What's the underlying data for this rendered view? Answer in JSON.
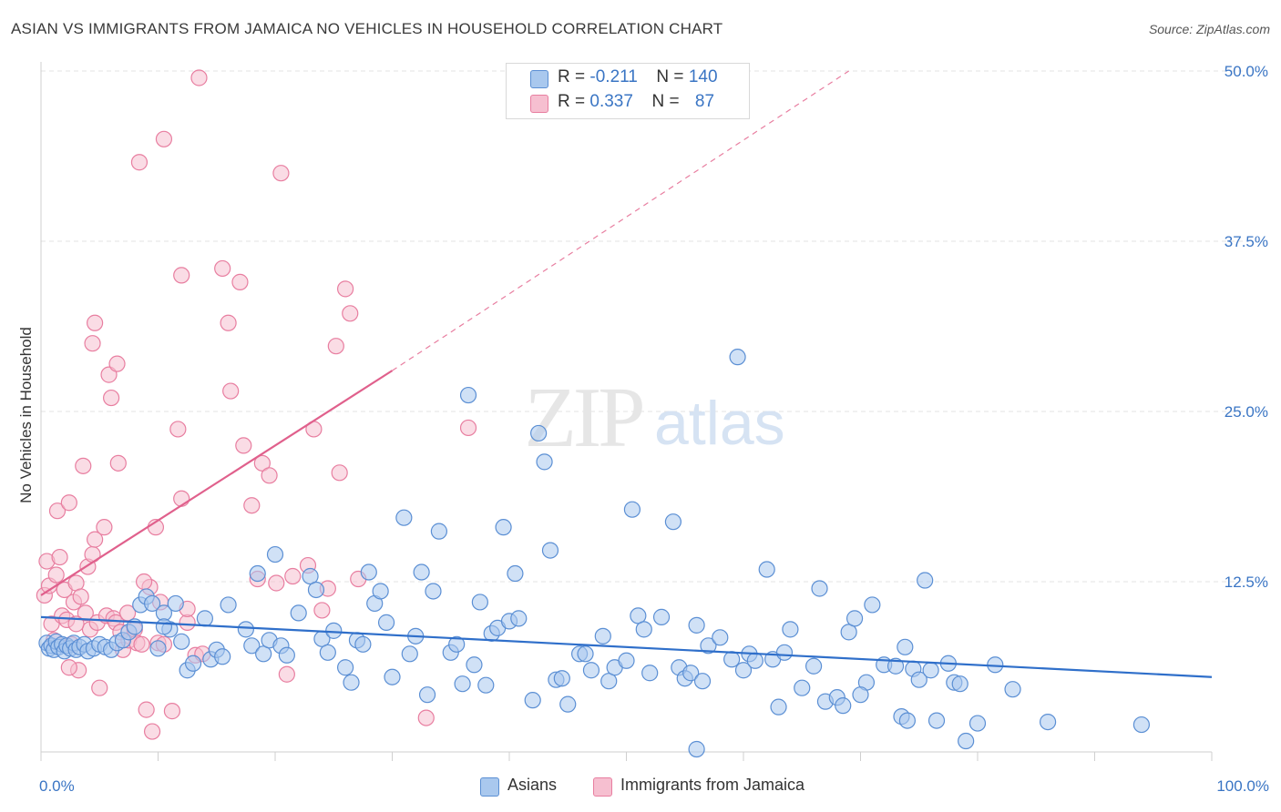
{
  "title": "ASIAN VS IMMIGRANTS FROM JAMAICA NO VEHICLES IN HOUSEHOLD CORRELATION CHART",
  "source": "Source: ZipAtlas.com",
  "watermark": {
    "zip": "ZIP",
    "atlas": "atlas"
  },
  "colors": {
    "asian_fill": "#a9c8ee",
    "asian_stroke": "#5b8fd4",
    "asian_line": "#2f6fca",
    "jamaica_fill": "#f6bfd0",
    "jamaica_stroke": "#e87ea0",
    "jamaica_line": "#e0608c",
    "axis_text": "#3a75c4",
    "grid": "#e3e3e3"
  },
  "legend": {
    "rows": [
      {
        "r_label": "R =",
        "r_value": "-0.211",
        "n_label": "N =",
        "n_value": "140"
      },
      {
        "r_label": "R =",
        "r_value": "0.337",
        "n_label": "N =",
        "n_value": "87"
      }
    ]
  },
  "bottom_legend": {
    "asian": "Asians",
    "jamaica": "Immigrants from Jamaica"
  },
  "chart_data": {
    "type": "scatter",
    "title": "ASIAN VS IMMIGRANTS FROM JAMAICA NO VEHICLES IN HOUSEHOLD CORRELATION CHART",
    "xlabel": "",
    "ylabel": "No Vehicles in Household",
    "xlim": [
      0,
      100
    ],
    "ylim": [
      0,
      50
    ],
    "x_tick_labels": [
      "0.0%",
      "100.0%"
    ],
    "y_ticks": [
      12.5,
      25.0,
      37.5,
      50.0
    ],
    "y_tick_labels": [
      "12.5%",
      "25.0%",
      "37.5%",
      "50.0%"
    ],
    "grid": true,
    "legend_position": "top-center",
    "series": [
      {
        "name": "Asians",
        "r": -0.211,
        "n": 140,
        "trend": {
          "x": [
            0,
            100
          ],
          "y": [
            9.9,
            5.5
          ]
        },
        "points": [
          [
            0.5,
            8.0
          ],
          [
            0.7,
            7.6
          ],
          [
            0.9,
            7.8
          ],
          [
            1.1,
            7.5
          ],
          [
            1.3,
            8.1
          ],
          [
            1.5,
            7.7
          ],
          [
            1.8,
            7.9
          ],
          [
            2.0,
            7.4
          ],
          [
            2.2,
            7.8
          ],
          [
            2.5,
            7.6
          ],
          [
            2.8,
            8.0
          ],
          [
            3.0,
            7.5
          ],
          [
            3.3,
            7.7
          ],
          [
            3.7,
            7.9
          ],
          [
            4.0,
            7.4
          ],
          [
            4.5,
            7.6
          ],
          [
            5.0,
            7.9
          ],
          [
            5.5,
            7.7
          ],
          [
            6.0,
            7.5
          ],
          [
            6.5,
            8.0
          ],
          [
            7.0,
            8.2
          ],
          [
            7.5,
            8.8
          ],
          [
            8.0,
            9.2
          ],
          [
            8.5,
            10.8
          ],
          [
            9.0,
            11.4
          ],
          [
            9.5,
            10.9
          ],
          [
            10.0,
            7.6
          ],
          [
            10.5,
            10.2
          ],
          [
            11.0,
            9.0
          ],
          [
            11.5,
            10.9
          ],
          [
            10.5,
            9.2
          ],
          [
            12.0,
            8.1
          ],
          [
            12.5,
            6.0
          ],
          [
            13.0,
            6.5
          ],
          [
            14.0,
            9.8
          ],
          [
            14.5,
            6.8
          ],
          [
            15.0,
            7.5
          ],
          [
            15.5,
            7.0
          ],
          [
            16.0,
            10.8
          ],
          [
            17.5,
            9.0
          ],
          [
            18.0,
            7.8
          ],
          [
            18.5,
            13.1
          ],
          [
            19.0,
            7.2
          ],
          [
            19.5,
            8.2
          ],
          [
            20.0,
            14.5
          ],
          [
            20.5,
            7.8
          ],
          [
            21.0,
            7.1
          ],
          [
            22.0,
            10.2
          ],
          [
            23.0,
            12.9
          ],
          [
            23.5,
            11.9
          ],
          [
            24.0,
            8.3
          ],
          [
            24.5,
            7.3
          ],
          [
            25.0,
            8.9
          ],
          [
            26.0,
            6.2
          ],
          [
            26.5,
            5.1
          ],
          [
            27.0,
            8.2
          ],
          [
            27.5,
            7.9
          ],
          [
            28.0,
            13.2
          ],
          [
            28.5,
            10.9
          ],
          [
            29.0,
            11.8
          ],
          [
            29.5,
            9.5
          ],
          [
            30.0,
            5.5
          ],
          [
            31.0,
            17.2
          ],
          [
            31.5,
            7.2
          ],
          [
            32.0,
            8.5
          ],
          [
            32.5,
            13.2
          ],
          [
            33.0,
            4.2
          ],
          [
            33.5,
            11.8
          ],
          [
            34.0,
            16.2
          ],
          [
            35.0,
            7.3
          ],
          [
            35.5,
            7.9
          ],
          [
            36.0,
            5.0
          ],
          [
            36.5,
            26.2
          ],
          [
            37.0,
            6.4
          ],
          [
            37.5,
            11.0
          ],
          [
            38.0,
            4.9
          ],
          [
            38.5,
            8.7
          ],
          [
            39.0,
            9.1
          ],
          [
            39.5,
            16.5
          ],
          [
            40.0,
            9.6
          ],
          [
            40.5,
            13.1
          ],
          [
            40.8,
            9.8
          ],
          [
            42.0,
            3.8
          ],
          [
            42.5,
            23.4
          ],
          [
            43.0,
            21.3
          ],
          [
            43.5,
            14.8
          ],
          [
            44.0,
            5.3
          ],
          [
            44.5,
            5.4
          ],
          [
            45.0,
            3.5
          ],
          [
            46.0,
            7.2
          ],
          [
            46.5,
            7.2
          ],
          [
            47.0,
            6.0
          ],
          [
            48.0,
            8.5
          ],
          [
            48.5,
            5.2
          ],
          [
            49.0,
            6.2
          ],
          [
            50.0,
            6.7
          ],
          [
            50.5,
            17.8
          ],
          [
            51.0,
            10.0
          ],
          [
            51.5,
            9.0
          ],
          [
            52.0,
            5.8
          ],
          [
            53.0,
            9.9
          ],
          [
            54.0,
            16.9
          ],
          [
            54.5,
            6.2
          ],
          [
            55.0,
            5.4
          ],
          [
            55.5,
            5.8
          ],
          [
            56.0,
            9.3
          ],
          [
            56.5,
            5.2
          ],
          [
            57.0,
            7.8
          ],
          [
            58.0,
            8.4
          ],
          [
            59.0,
            6.8
          ],
          [
            59.5,
            29.0
          ],
          [
            60.0,
            6.0
          ],
          [
            60.5,
            7.2
          ],
          [
            61.0,
            6.7
          ],
          [
            62.0,
            13.4
          ],
          [
            62.5,
            6.8
          ],
          [
            63.0,
            3.3
          ],
          [
            63.5,
            7.3
          ],
          [
            64.0,
            9.0
          ],
          [
            65.0,
            4.7
          ],
          [
            70.5,
            5.1
          ],
          [
            66.0,
            6.3
          ],
          [
            67.0,
            3.7
          ],
          [
            68.0,
            4.0
          ],
          [
            68.5,
            3.4
          ],
          [
            69.0,
            8.8
          ],
          [
            69.5,
            9.8
          ],
          [
            70.0,
            4.2
          ],
          [
            71.0,
            10.8
          ],
          [
            72.0,
            6.4
          ],
          [
            73.0,
            6.3
          ],
          [
            73.5,
            2.6
          ],
          [
            73.8,
            7.7
          ],
          [
            74.0,
            2.3
          ],
          [
            74.5,
            6.1
          ],
          [
            75.0,
            5.3
          ],
          [
            75.5,
            12.6
          ],
          [
            76.0,
            6.0
          ],
          [
            76.5,
            2.3
          ],
          [
            77.5,
            6.5
          ],
          [
            78.0,
            5.1
          ],
          [
            78.5,
            5.0
          ],
          [
            79.0,
            0.8
          ],
          [
            80.0,
            2.1
          ],
          [
            81.5,
            6.4
          ],
          [
            83.0,
            4.6
          ],
          [
            86.0,
            2.2
          ],
          [
            94.0,
            2.0
          ],
          [
            56.0,
            0.2
          ],
          [
            66.5,
            12.0
          ]
        ]
      },
      {
        "name": "Immigrants from Jamaica",
        "r": 0.337,
        "n": 87,
        "trend": {
          "x": [
            0,
            30
          ],
          "y": [
            11.5,
            28.0
          ]
        },
        "trend_dashed": {
          "x": [
            30,
            69
          ],
          "y": [
            28.0,
            50.0
          ]
        },
        "points": [
          [
            0.3,
            11.5
          ],
          [
            0.5,
            14.0
          ],
          [
            0.7,
            12.2
          ],
          [
            0.9,
            9.4
          ],
          [
            1.1,
            8.2
          ],
          [
            1.3,
            13.0
          ],
          [
            1.4,
            17.7
          ],
          [
            1.6,
            14.3
          ],
          [
            1.8,
            10.0
          ],
          [
            2.0,
            11.9
          ],
          [
            2.2,
            9.7
          ],
          [
            2.4,
            18.3
          ],
          [
            2.6,
            7.9
          ],
          [
            2.8,
            11.0
          ],
          [
            3.0,
            12.4
          ],
          [
            3.2,
            6.0
          ],
          [
            3.4,
            11.4
          ],
          [
            3.6,
            21.0
          ],
          [
            3.8,
            10.2
          ],
          [
            4.0,
            13.6
          ],
          [
            4.2,
            9.0
          ],
          [
            4.4,
            14.5
          ],
          [
            4.6,
            15.6
          ],
          [
            4.8,
            9.5
          ],
          [
            4.4,
            30.0
          ],
          [
            4.6,
            31.5
          ],
          [
            5.0,
            4.7
          ],
          [
            5.4,
            16.5
          ],
          [
            5.6,
            10.0
          ],
          [
            5.8,
            27.7
          ],
          [
            6.0,
            26.0
          ],
          [
            6.2,
            9.8
          ],
          [
            6.4,
            9.5
          ],
          [
            6.6,
            21.2
          ],
          [
            6.8,
            8.8
          ],
          [
            7.0,
            7.5
          ],
          [
            7.5,
            8.2
          ],
          [
            8.0,
            9.0
          ],
          [
            8.2,
            8.0
          ],
          [
            8.4,
            43.3
          ],
          [
            8.6,
            7.9
          ],
          [
            9.0,
            3.1
          ],
          [
            9.3,
            12.1
          ],
          [
            9.5,
            1.5
          ],
          [
            9.8,
            16.5
          ],
          [
            10.0,
            8.0
          ],
          [
            10.2,
            11.0
          ],
          [
            10.5,
            7.9
          ],
          [
            11.2,
            3.0
          ],
          [
            11.7,
            23.7
          ],
          [
            12.0,
            18.6
          ],
          [
            12.5,
            9.5
          ],
          [
            12.5,
            10.5
          ],
          [
            13.2,
            7.1
          ],
          [
            13.5,
            49.5
          ],
          [
            13.8,
            7.2
          ],
          [
            15.5,
            35.5
          ],
          [
            16.0,
            31.5
          ],
          [
            16.2,
            26.5
          ],
          [
            17.0,
            34.5
          ],
          [
            18.0,
            18.1
          ],
          [
            18.5,
            12.7
          ],
          [
            18.9,
            21.2
          ],
          [
            19.5,
            20.3
          ],
          [
            20.1,
            12.4
          ],
          [
            20.5,
            42.5
          ],
          [
            21.0,
            5.7
          ],
          [
            21.5,
            12.9
          ],
          [
            22.8,
            13.7
          ],
          [
            23.3,
            23.7
          ],
          [
            24.0,
            10.4
          ],
          [
            24.5,
            12.0
          ],
          [
            25.2,
            29.8
          ],
          [
            25.5,
            20.5
          ],
          [
            26.0,
            34.0
          ],
          [
            26.4,
            32.2
          ],
          [
            10.5,
            45.0
          ],
          [
            7.4,
            10.2
          ],
          [
            8.8,
            12.5
          ],
          [
            2.4,
            6.2
          ],
          [
            12.0,
            35.0
          ],
          [
            17.3,
            22.5
          ],
          [
            27.1,
            12.7
          ],
          [
            32.9,
            2.5
          ],
          [
            6.5,
            28.5
          ],
          [
            3.0,
            9.4
          ],
          [
            36.5,
            23.8
          ]
        ]
      }
    ]
  }
}
